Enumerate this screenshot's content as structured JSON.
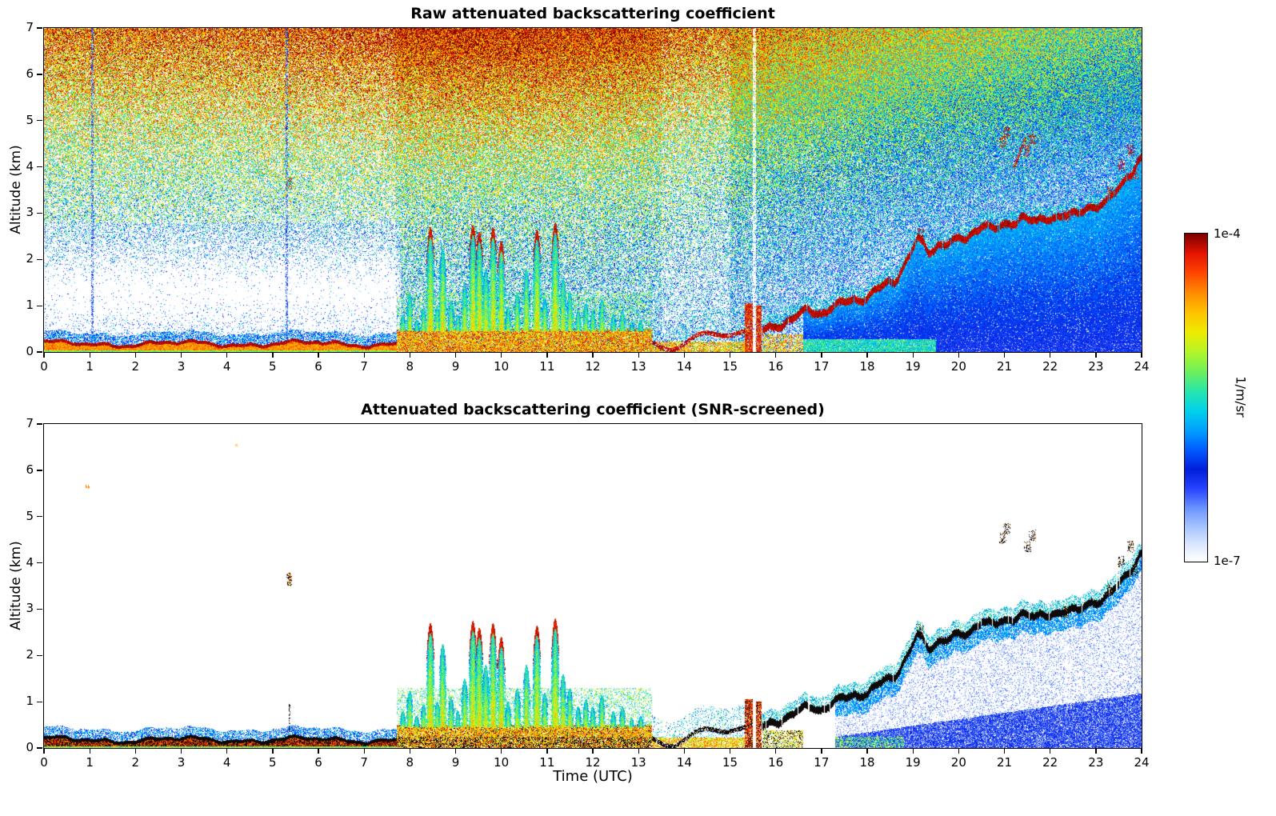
{
  "figure": {
    "background": "#ffffff",
    "colorbar": {
      "top_label": "1e-4",
      "bottom_label": "1e-7",
      "unit_label": "1/m/sr",
      "scale": "log",
      "colormap": "white-lightblue-blue-cyan-green-yellow-orange-red-darkred"
    }
  },
  "chart_data": [
    {
      "type": "heatmap",
      "panel": "raw",
      "title": "Raw attenuated backscattering coefficient",
      "xlabel": "",
      "ylabel": "Altitude (km)",
      "xlim": [
        0,
        24
      ],
      "ylim": [
        0,
        7
      ],
      "xticks": [
        0,
        1,
        2,
        3,
        4,
        5,
        6,
        7,
        8,
        9,
        10,
        11,
        12,
        13,
        14,
        15,
        16,
        17,
        18,
        19,
        20,
        21,
        22,
        23,
        24
      ],
      "yticks": [
        0,
        1,
        2,
        3,
        4,
        5,
        6,
        7
      ],
      "value_scale": {
        "min": "1e-7",
        "max": "1e-4",
        "units": "1/m/sr",
        "scale": "log"
      },
      "features": {
        "noise_description": "Range-dependent speckle noise fills panel: red/orange aloft 4-14 UTC, green mid-levels, sparse blue dots in clear low layer 0-7.7 UTC, cooler denser blue-green noise after 15 UTC",
        "surface_layer": {
          "time_range": [
            0,
            7.72
          ],
          "mean_top_km": 0.22
        },
        "noise_columns_utc": [
          1.05,
          5.3
        ],
        "isolated_echo": [
          0.95,
          5.65
        ],
        "midlevel_echo": [
          5.35,
          3.65
        ],
        "convective_period": {
          "time_range": [
            7.72,
            13.3
          ],
          "cells": [
            [
              7.85,
              0.8
            ],
            [
              8.0,
              1.25
            ],
            [
              8.15,
              0.7
            ],
            [
              8.3,
              0.95
            ],
            [
              8.45,
              2.7
            ],
            [
              8.6,
              1.0
            ],
            [
              8.72,
              2.25
            ],
            [
              8.9,
              1.1
            ],
            [
              9.05,
              0.8
            ],
            [
              9.2,
              1.5
            ],
            [
              9.38,
              2.75
            ],
            [
              9.52,
              2.6
            ],
            [
              9.66,
              1.8
            ],
            [
              9.82,
              2.7
            ],
            [
              10.0,
              2.4
            ],
            [
              10.15,
              1.0
            ],
            [
              10.35,
              1.3
            ],
            [
              10.55,
              1.8
            ],
            [
              10.78,
              2.65
            ],
            [
              10.95,
              1.2
            ],
            [
              11.18,
              2.8
            ],
            [
              11.35,
              1.6
            ],
            [
              11.5,
              1.3
            ],
            [
              11.68,
              0.9
            ],
            [
              11.85,
              1.05
            ],
            [
              12.0,
              0.9
            ],
            [
              12.2,
              1.15
            ],
            [
              12.45,
              0.8
            ],
            [
              12.65,
              0.9
            ],
            [
              12.85,
              0.65
            ],
            [
              13.05,
              0.7
            ]
          ]
        },
        "patchy_period": {
          "time_range": [
            13.3,
            15.35
          ]
        },
        "rain_shafts": [
          [
            15.33,
            15.48,
            1.05
          ],
          [
            15.56,
            15.68,
            1.0
          ]
        ],
        "rising_layer_track": [
          [
            15.7,
            0.5
          ],
          [
            16.2,
            0.7
          ],
          [
            16.7,
            0.95
          ],
          [
            17.0,
            0.9
          ],
          [
            17.3,
            1.05
          ],
          [
            17.7,
            1.2
          ],
          [
            18.0,
            1.25
          ],
          [
            18.3,
            1.45
          ],
          [
            18.6,
            1.6
          ],
          [
            18.9,
            2.1
          ],
          [
            19.1,
            2.5
          ],
          [
            19.35,
            2.2
          ],
          [
            19.6,
            2.4
          ],
          [
            19.9,
            2.45
          ],
          [
            20.2,
            2.5
          ],
          [
            20.5,
            2.85
          ],
          [
            20.8,
            2.7
          ],
          [
            21.1,
            2.8
          ],
          [
            21.4,
            3.0
          ],
          [
            21.7,
            2.85
          ],
          [
            22.0,
            2.95
          ],
          [
            22.3,
            3.05
          ],
          [
            22.6,
            3.0
          ],
          [
            22.9,
            3.2
          ],
          [
            23.2,
            3.3
          ],
          [
            23.5,
            3.55
          ],
          [
            23.75,
            3.9
          ],
          [
            23.95,
            4.25
          ]
        ],
        "attenuation_zone": {
          "time_start": 16.6,
          "description": "blue low-signal region below rising layer"
        },
        "elevated_streak": [
          [
            21.2,
            4.0
          ],
          [
            21.45,
            4.62
          ]
        ],
        "speck_clusters": [
          [
            19.15,
            2.55
          ],
          [
            20.95,
            4.55
          ],
          [
            21.05,
            4.75
          ],
          [
            21.5,
            4.35
          ],
          [
            21.6,
            4.6
          ],
          [
            22.35,
            2.95
          ],
          [
            23.3,
            3.45
          ],
          [
            23.55,
            4.05
          ],
          [
            23.75,
            4.35
          ],
          [
            23.85,
            3.85
          ]
        ]
      }
    },
    {
      "type": "heatmap",
      "panel": "screened",
      "title": "Attenuated backscattering coefficient (SNR-screened)",
      "xlabel": "Time (UTC)",
      "ylabel": "Altitude (km)",
      "xlim": [
        0,
        24
      ],
      "ylim": [
        0,
        7
      ],
      "xticks": [
        0,
        1,
        2,
        3,
        4,
        5,
        6,
        7,
        8,
        9,
        10,
        11,
        12,
        13,
        14,
        15,
        16,
        17,
        18,
        19,
        20,
        21,
        22,
        23,
        24
      ],
      "yticks": [
        0,
        1,
        2,
        3,
        4,
        5,
        6,
        7
      ],
      "value_scale": {
        "min": "1e-7",
        "max": "1e-4",
        "units": "1/m/sr",
        "scale": "log"
      },
      "features": {
        "noise_description": "Noise removed: white background; only SNR-valid returns remain, strongest returns rendered near-black",
        "surface_layer": {
          "time_range": [
            0,
            7.72
          ],
          "mean_top_km": 0.22
        },
        "isolated_echo": [
          0.95,
          5.65
        ],
        "midlevel_echo": [
          5.35,
          3.65
        ],
        "stray_dots": [
          [
            4.2,
            6.55
          ]
        ],
        "convective_period": {
          "time_range": [
            7.72,
            13.3
          ],
          "cells": [
            [
              7.85,
              0.8
            ],
            [
              8.0,
              1.25
            ],
            [
              8.15,
              0.7
            ],
            [
              8.3,
              0.95
            ],
            [
              8.45,
              2.7
            ],
            [
              8.6,
              1.0
            ],
            [
              8.72,
              2.25
            ],
            [
              8.9,
              1.1
            ],
            [
              9.05,
              0.8
            ],
            [
              9.2,
              1.5
            ],
            [
              9.38,
              2.75
            ],
            [
              9.52,
              2.6
            ],
            [
              9.66,
              1.8
            ],
            [
              9.82,
              2.7
            ],
            [
              10.0,
              2.4
            ],
            [
              10.15,
              1.0
            ],
            [
              10.35,
              1.3
            ],
            [
              10.55,
              1.8
            ],
            [
              10.78,
              2.65
            ],
            [
              10.95,
              1.2
            ],
            [
              11.18,
              2.8
            ],
            [
              11.35,
              1.6
            ],
            [
              11.5,
              1.3
            ],
            [
              11.68,
              0.9
            ],
            [
              11.85,
              1.05
            ],
            [
              12.0,
              0.9
            ],
            [
              12.2,
              1.15
            ],
            [
              12.45,
              0.8
            ],
            [
              12.65,
              0.9
            ],
            [
              12.85,
              0.65
            ],
            [
              13.05,
              0.7
            ]
          ]
        },
        "patchy_period": {
          "time_range": [
            13.3,
            15.35
          ]
        },
        "rain_shafts": [
          [
            15.33,
            15.48,
            1.05
          ],
          [
            15.56,
            15.68,
            1.0
          ]
        ],
        "rising_layer_track": [
          [
            15.7,
            0.5
          ],
          [
            16.2,
            0.7
          ],
          [
            16.7,
            0.95
          ],
          [
            17.0,
            0.9
          ],
          [
            17.3,
            1.05
          ],
          [
            17.7,
            1.2
          ],
          [
            18.0,
            1.25
          ],
          [
            18.3,
            1.45
          ],
          [
            18.6,
            1.6
          ],
          [
            18.9,
            2.1
          ],
          [
            19.1,
            2.5
          ],
          [
            19.35,
            2.2
          ],
          [
            19.6,
            2.4
          ],
          [
            19.9,
            2.45
          ],
          [
            20.2,
            2.5
          ],
          [
            20.5,
            2.85
          ],
          [
            20.8,
            2.7
          ],
          [
            21.1,
            2.8
          ],
          [
            21.4,
            3.0
          ],
          [
            21.7,
            2.85
          ],
          [
            22.0,
            2.95
          ],
          [
            22.3,
            3.05
          ],
          [
            22.6,
            3.0
          ],
          [
            22.9,
            3.2
          ],
          [
            23.2,
            3.3
          ],
          [
            23.5,
            3.55
          ],
          [
            23.75,
            3.9
          ],
          [
            23.95,
            4.25
          ]
        ],
        "attenuation_zone": {
          "time_start": 17.3,
          "description": "pale blue speckled low-signal region below rising layer after 17 UTC"
        },
        "speck_clusters": [
          [
            19.15,
            2.55
          ],
          [
            20.95,
            4.55
          ],
          [
            21.05,
            4.75
          ],
          [
            21.5,
            4.35
          ],
          [
            21.6,
            4.6
          ],
          [
            22.35,
            2.95
          ],
          [
            23.3,
            3.45
          ],
          [
            23.55,
            4.05
          ],
          [
            23.75,
            4.35
          ],
          [
            23.85,
            3.85
          ]
        ]
      }
    }
  ]
}
